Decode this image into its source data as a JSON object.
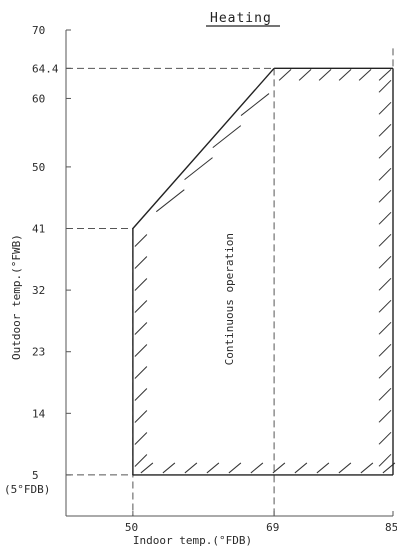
{
  "title": "Heating",
  "y_axis_label": "Outdoor temp.(°FWB)",
  "x_axis_label": "Indoor temp.(°FDB)",
  "region_label": "Continuous operation",
  "extra_y_label": "(5°FDB)",
  "y_ticks": [
    "70",
    "64.4",
    "60",
    "50",
    "41",
    "32",
    "23",
    "14",
    "5"
  ],
  "x_ticks": [
    "50",
    "69",
    "85"
  ],
  "chart_data": {
    "type": "area",
    "title": "Heating",
    "xlabel": "Indoor temp.(°FDB)",
    "ylabel": "Outdoor temp.(°FWB)",
    "xlim": [
      41,
      85
    ],
    "ylim": [
      -1,
      70
    ],
    "boundary": {
      "x": [
        50,
        50,
        69,
        85,
        85,
        50
      ],
      "y": [
        5,
        41,
        64.4,
        64.4,
        5,
        5
      ]
    }
  }
}
